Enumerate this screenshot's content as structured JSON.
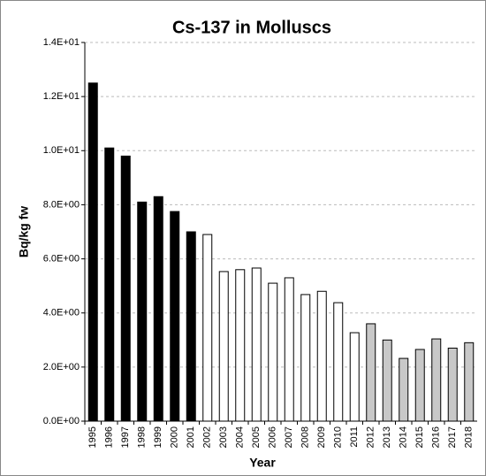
{
  "chart_data": {
    "type": "bar",
    "title": "Cs-137 in Molluscs",
    "x_label": "Year",
    "y_label": "Bq/kg fw",
    "categories": [
      "1995",
      "1996",
      "1997",
      "1998",
      "1999",
      "2000",
      "2001",
      "2002",
      "2003",
      "2004",
      "2005",
      "2006",
      "2007",
      "2008",
      "2009",
      "2010",
      "2011",
      "2012",
      "2013",
      "2014",
      "2015",
      "2016",
      "2017",
      "2018"
    ],
    "values": [
      12.5,
      10.1,
      9.8,
      8.1,
      8.3,
      7.75,
      7.0,
      6.9,
      5.53,
      5.6,
      5.66,
      5.1,
      5.3,
      4.68,
      4.8,
      4.38,
      3.27,
      3.6,
      3.0,
      2.32,
      2.65,
      3.04,
      2.7,
      2.9
    ],
    "colors": [
      "#000000",
      "#000000",
      "#000000",
      "#000000",
      "#000000",
      "#000000",
      "#000000",
      "#ffffff",
      "#ffffff",
      "#ffffff",
      "#ffffff",
      "#ffffff",
      "#ffffff",
      "#ffffff",
      "#ffffff",
      "#ffffff",
      "#ffffff",
      "#c8c8c8",
      "#c8c8c8",
      "#c8c8c8",
      "#c8c8c8",
      "#c8c8c8",
      "#c8c8c8",
      "#c8c8c8"
    ],
    "ylim": [
      0,
      14
    ],
    "yticks": [
      {
        "value": 0,
        "label": "0.0E+00"
      },
      {
        "value": 2,
        "label": "2.0E+00"
      },
      {
        "value": 4,
        "label": "4.0E+00"
      },
      {
        "value": 6,
        "label": "6.0E+00"
      },
      {
        "value": 8,
        "label": "8.0E+00"
      },
      {
        "value": 10,
        "label": "1.0E+01"
      },
      {
        "value": 12,
        "label": "1.2E+01"
      },
      {
        "value": 14,
        "label": "1.4E+01"
      }
    ],
    "grid": true
  }
}
